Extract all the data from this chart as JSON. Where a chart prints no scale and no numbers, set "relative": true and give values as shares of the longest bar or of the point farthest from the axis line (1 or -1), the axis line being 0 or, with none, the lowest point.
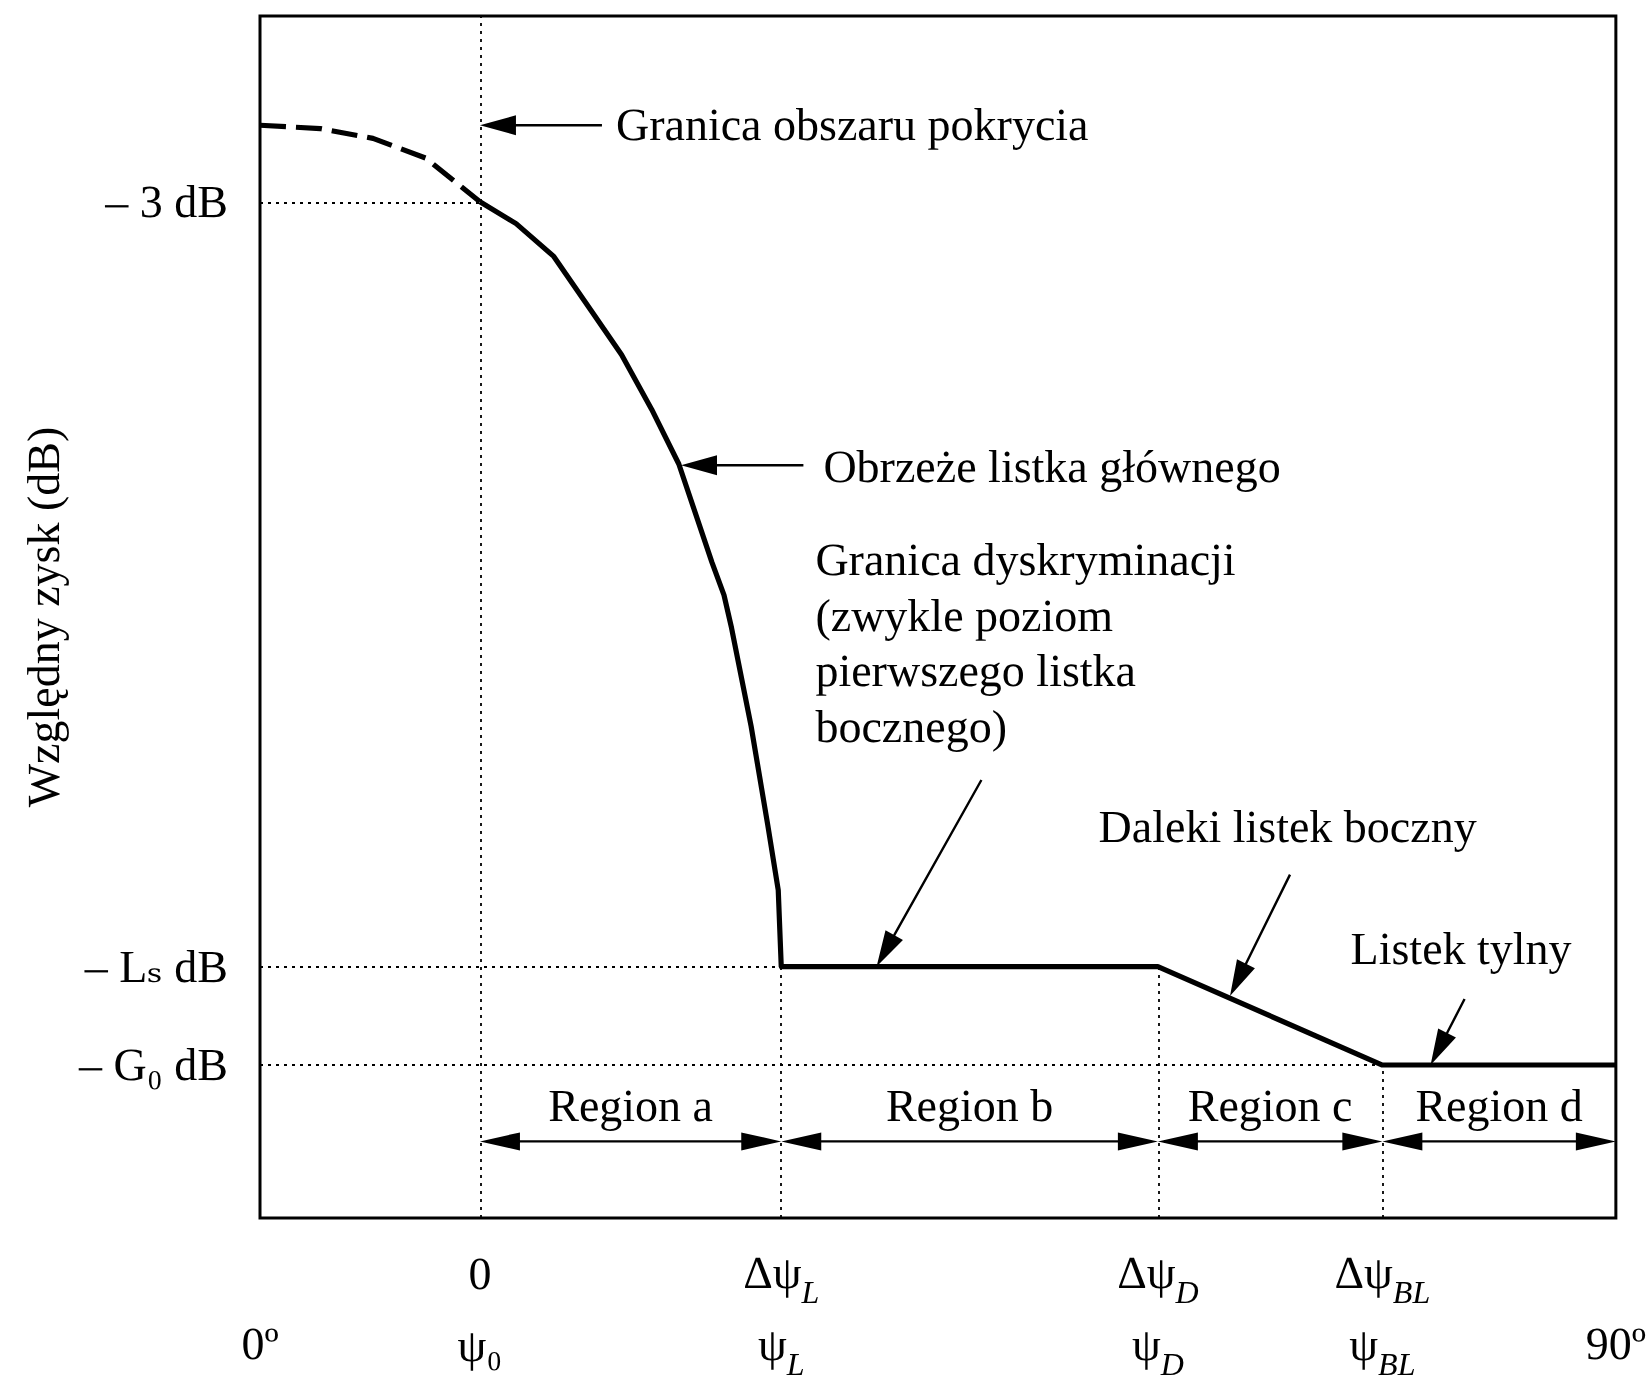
{
  "chart_data": {
    "type": "line",
    "relative": true,
    "ylabel": "Względny zysk (dB)",
    "xlim": [
      0,
      90
    ],
    "xticks": [
      {
        "value": 0,
        "label": "0º"
      },
      {
        "value": 90,
        "label": "90º"
      }
    ],
    "series": [
      {
        "color": "#000000",
        "line_style": "dashed",
        "x": [
          0,
          4,
          7.5,
          11,
          14.6
        ],
        "values": [
          1,
          0.997,
          0.988,
          0.97,
          0.93
        ]
      },
      {
        "color": "#000000",
        "line_style": "solid",
        "x": [
          14.6,
          17,
          19.5,
          22,
          24,
          26,
          27.8,
          30,
          30.8,
          31.3,
          32.6,
          33.7,
          34.4,
          34.6,
          59.6,
          74.5,
          90
        ],
        "values": [
          0.93,
          0.91,
          0.88,
          0.83,
          0.79,
          0.74,
          0.69,
          0.6,
          0.57,
          0.54,
          0.45,
          0.36,
          0.3,
          0.23,
          0.23,
          0.14,
          0.14
        ]
      }
    ],
    "marker": "none",
    "grid": false,
    "ref_lines": [
      {
        "axis": "y",
        "value": 0.93,
        "label": "– 3 dB",
        "line_style": "dotted"
      },
      {
        "axis": "y",
        "value": 0.23,
        "label": "– Lₛ dB",
        "line_style": "dotted"
      },
      {
        "axis": "y",
        "value": 0.14,
        "label": "– G₀ dB",
        "line_style": "dotted"
      },
      {
        "axis": "x",
        "value": 14.6,
        "label": "0\nψ₀",
        "line_style": "dotted"
      },
      {
        "axis": "x",
        "value": 34.6,
        "label": "Δψ$_{L}$\nψ$_{L}$",
        "line_style": "dotted"
      },
      {
        "axis": "x",
        "value": 59.6,
        "label": "Δψ$_{D}$\nψ$_{D}$",
        "line_style": "dotted"
      },
      {
        "axis": "x",
        "value": 74.5,
        "label": "Δψ$_{BL}$\nψ$_{BL}$",
        "line_style": "dotted"
      }
    ],
    "annotations": [
      {
        "text": "Granica obszaru pokrycia",
        "x": 14.6,
        "y": 1
      },
      "Obrzeże listka głównego",
      "Granica dyskryminacji\n(zwykle poziom\npierwszego listka\nbocznego)",
      "Daleki listek boczny",
      {
        "text": "Listek tylny",
        "x": 77.7,
        "y": 0.14
      },
      "Region a",
      "Region b",
      "Region c",
      "Region d"
    ]
  }
}
